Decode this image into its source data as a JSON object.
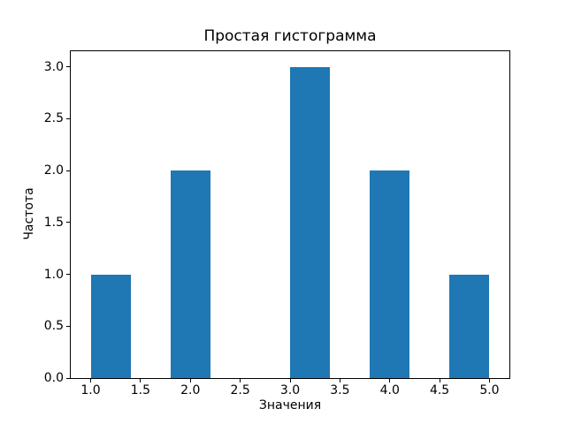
{
  "chart_data": {
    "type": "bar",
    "title": "Простая гистограмма",
    "xlabel": "Значения",
    "ylabel": "Частота",
    "bar_color": "#1f77b4",
    "axis_color": "#000000",
    "background_color": "#ffffff",
    "xlim": [
      0.8,
      5.2
    ],
    "ylim": [
      0.0,
      3.15
    ],
    "grid": false,
    "legend": false,
    "x_ticks": [
      {
        "value": 1.0,
        "label": "1.0"
      },
      {
        "value": 1.5,
        "label": "1.5"
      },
      {
        "value": 2.0,
        "label": "2.0"
      },
      {
        "value": 2.5,
        "label": "2.5"
      },
      {
        "value": 3.0,
        "label": "3.0"
      },
      {
        "value": 3.5,
        "label": "3.5"
      },
      {
        "value": 4.0,
        "label": "4.0"
      },
      {
        "value": 4.5,
        "label": "4.5"
      },
      {
        "value": 5.0,
        "label": "5.0"
      }
    ],
    "y_ticks": [
      {
        "value": 0.0,
        "label": "0.0"
      },
      {
        "value": 0.5,
        "label": "0.5"
      },
      {
        "value": 1.0,
        "label": "1.0"
      },
      {
        "value": 1.5,
        "label": "1.5"
      },
      {
        "value": 2.0,
        "label": "2.0"
      },
      {
        "value": 2.5,
        "label": "2.5"
      },
      {
        "value": 3.0,
        "label": "3.0"
      }
    ],
    "bars": [
      {
        "x_from": 1.0,
        "x_to": 1.4,
        "count": 1
      },
      {
        "x_from": 1.8,
        "x_to": 2.2,
        "count": 2
      },
      {
        "x_from": 3.0,
        "x_to": 3.4,
        "count": 3
      },
      {
        "x_from": 3.8,
        "x_to": 4.2,
        "count": 2
      },
      {
        "x_from": 4.6,
        "x_to": 5.0,
        "count": 1
      }
    ]
  }
}
